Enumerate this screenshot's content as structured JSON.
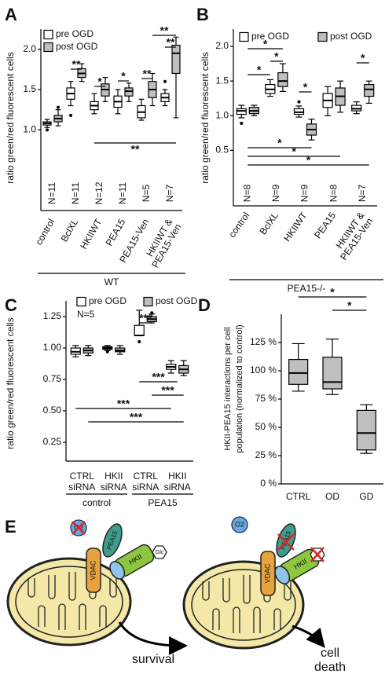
{
  "chart_data": [
    {
      "type": "box",
      "title": "A",
      "ylabel": "ratio green/red fluorescent cells",
      "categories": [
        "control",
        "BclXL",
        "HKIIWT",
        "PEA15",
        "PEA15-Ven",
        [
          "HKIIWT &",
          "PEA15-Ven"
        ]
      ],
      "n_labels": [
        "N=11",
        "N=11",
        "N=12",
        "N=11",
        "N=5",
        "N=7"
      ],
      "group_labels": [
        "WT"
      ],
      "series": [
        {
          "name": "pre OGD",
          "color": "#ffffff",
          "values": [
            [
              1.03,
              1.06,
              1.08,
              1.1,
              1.13
            ],
            [
              1.3,
              1.38,
              1.45,
              1.52,
              1.6
            ],
            [
              1.2,
              1.25,
              1.3,
              1.35,
              1.45
            ],
            [
              1.2,
              1.28,
              1.35,
              1.42,
              1.5
            ],
            [
              1.12,
              1.15,
              1.22,
              1.3,
              1.38
            ],
            [
              1.3,
              1.35,
              1.4,
              1.45,
              1.5
            ]
          ],
          "outliers": [
            [
              1.0
            ],
            [
              1.18
            ],
            [],
            [],
            [],
            [
              1.6
            ]
          ]
        },
        {
          "name": "post OGD",
          "color": "#bfbfbf",
          "values": [
            [
              1.05,
              1.1,
              1.14,
              1.18,
              1.25
            ],
            [
              1.6,
              1.65,
              1.7,
              1.76,
              1.82
            ],
            [
              1.35,
              1.42,
              1.5,
              1.57,
              1.65
            ],
            [
              1.35,
              1.42,
              1.48,
              1.52,
              1.58
            ],
            [
              1.3,
              1.4,
              1.5,
              1.6,
              1.7
            ],
            [
              1.15,
              1.7,
              1.95,
              2.05,
              2.15
            ]
          ],
          "outliers": [
            [
              1.28
            ],
            [],
            [],
            [],
            [],
            []
          ]
        }
      ],
      "ylim": [
        0,
        2.25
      ],
      "yticks": [
        {
          "value": 1,
          "label": "1.0"
        },
        1.5,
        {
          "value": 2,
          "label": "2.0"
        }
      ],
      "legend": "top-left",
      "annotations": [
        "**",
        "*",
        "*",
        "**",
        "**",
        "**",
        "**"
      ]
    },
    {
      "type": "box",
      "title": "B",
      "ylabel": "ratio green/red fluorescent cells",
      "categories": [
        "control",
        "BclXL",
        "HKIIWT",
        "PEA15",
        [
          "HKIIWT &",
          "PEA15-Ven"
        ]
      ],
      "n_labels": [
        "N=8",
        "N=9",
        "N=9",
        "N=8",
        "N=7"
      ],
      "group_labels": [
        "PEA15-/-"
      ],
      "series": [
        {
          "name": "pre OGD",
          "color": "#ffffff",
          "values": [
            [
              0.97,
              1.02,
              1.07,
              1.1,
              1.15
            ],
            [
              1.28,
              1.32,
              1.38,
              1.45,
              1.52
            ],
            [
              0.98,
              1.02,
              1.05,
              1.1,
              1.14
            ],
            [
              1.0,
              1.12,
              1.22,
              1.32,
              1.42
            ],
            [
              1.03,
              1.07,
              1.1,
              1.15,
              1.2
            ]
          ],
          "outliers": [
            [
              0.89
            ],
            [],
            [
              1.2
            ],
            [],
            []
          ]
        },
        {
          "name": "post OGD",
          "color": "#bfbfbf",
          "values": [
            [
              1.0,
              1.03,
              1.07,
              1.12,
              1.15
            ],
            [
              1.35,
              1.42,
              1.5,
              1.62,
              1.75
            ],
            [
              0.65,
              0.72,
              0.8,
              0.88,
              0.95
            ],
            [
              1.05,
              1.15,
              1.28,
              1.4,
              1.5
            ],
            [
              1.18,
              1.28,
              1.38,
              1.45,
              1.5
            ]
          ],
          "outliers": [
            [],
            [],
            [],
            [],
            []
          ]
        }
      ],
      "ylim": [
        -0.3,
        2.25
      ],
      "yticks": [
        0.5,
        {
          "value": 1,
          "label": "1.0"
        },
        1.5,
        {
          "value": 2,
          "label": "2.0"
        }
      ],
      "legend": "top",
      "annotations": [
        "*",
        "*",
        "*",
        "*",
        "*",
        "*",
        "*",
        "*"
      ]
    },
    {
      "type": "box",
      "title": "C",
      "ylabel": "ratio green/red fluorescent cells",
      "note": "N=5",
      "categories": [
        "CTRL",
        "HKII",
        "CTRL",
        "HKII"
      ],
      "categories2": [
        "siRNA",
        "siRNA",
        "siRNA",
        "siRNA"
      ],
      "group_labels": [
        "control",
        "PEA15"
      ],
      "series": [
        {
          "name": "pre OGD",
          "color": "#ffffff",
          "values": [
            [
              0.93,
              0.95,
              0.97,
              1.0,
              1.02
            ],
            [
              0.98,
              0.99,
              1.0,
              1.01,
              1.02
            ],
            [
              1.1,
              1.1,
              1.1,
              1.18,
              1.3
            ],
            [
              0.8,
              0.83,
              0.85,
              0.87,
              0.9
            ]
          ],
          "outliers": [
            [],
            [
              0.97
            ],
            [
              1.05
            ],
            []
          ]
        },
        {
          "name": "post OGD",
          "color": "#bfbfbf",
          "values": [
            [
              0.94,
              0.96,
              0.98,
              1.0,
              1.02
            ],
            [
              0.95,
              0.97,
              0.98,
              1.0,
              1.02
            ],
            [
              1.2,
              1.21,
              1.23,
              1.25,
              1.27
            ],
            [
              0.78,
              0.8,
              0.83,
              0.86,
              0.9
            ]
          ],
          "outliers": [
            [],
            [],
            [
              1.28
            ],
            []
          ]
        }
      ],
      "ylim": [
        0.1,
        1.375
      ],
      "yticks": [
        0.25,
        {
          "value": 0.5,
          "label": "0.50"
        },
        0.75,
        {
          "value": 1,
          "label": "1.00"
        },
        1.25
      ],
      "legend": "top",
      "annotations": [
        "***",
        "***",
        "***",
        "***",
        "***"
      ]
    },
    {
      "type": "box",
      "title": "D",
      "ylabel": [
        "HKII-PEA15 interactions per cell",
        "population (normalized to control)"
      ],
      "categories": [
        "CTRL",
        "OD",
        "GD"
      ],
      "series": [
        {
          "color": "#bfbfbf",
          "values": [
            [
              82,
              88,
              98,
              110,
              124
            ],
            [
              79,
              84,
              90,
              112,
              128
            ],
            [
              27,
              30,
              45,
              65,
              70
            ]
          ],
          "outliers": [
            [],
            [],
            []
          ]
        }
      ],
      "ylim": [
        0,
        150
      ],
      "yticks": [
        {
          "value": 0,
          "label": "0 %"
        },
        {
          "value": 25,
          "label": "25 %"
        },
        {
          "value": 50,
          "label": "50 %"
        },
        {
          "value": 75,
          "label": "75 %"
        },
        {
          "value": 100,
          "label": "100 %"
        },
        {
          "value": 125,
          "label": "125 %"
        }
      ],
      "annotations": [
        "*",
        "*"
      ]
    }
  ],
  "diagram": {
    "title": "E",
    "left": {
      "o2": "O2",
      "vdac": "VDAC",
      "pea15": "PEA15",
      "hkii": "HKII",
      "glc": "Glc",
      "outcome": [
        "survival"
      ]
    },
    "right": {
      "o2": "O2",
      "vdac": "VDAC",
      "pea15": "PEA15",
      "hkii": "HKII",
      "outcome": [
        "cell",
        "death"
      ]
    }
  }
}
